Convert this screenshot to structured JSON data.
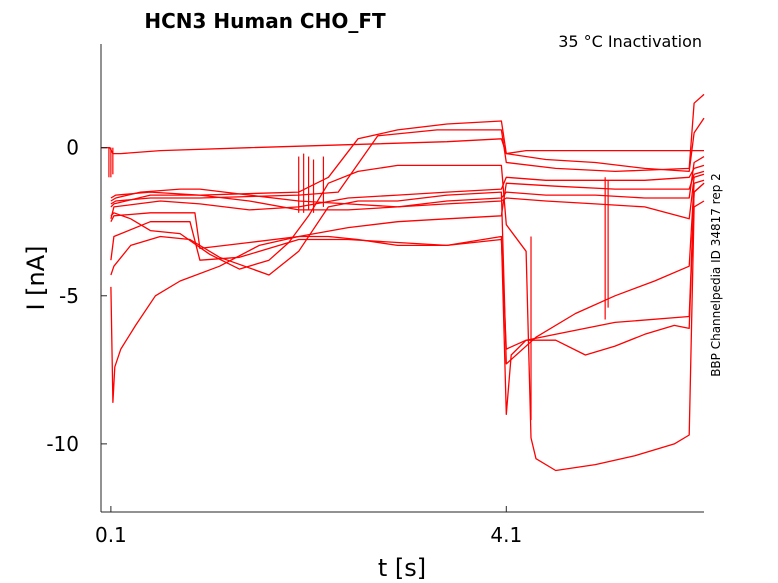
{
  "chart_data": {
    "type": "line",
    "title": "HCN3  Human  CHO_FT",
    "subtitle": "35 °C  Inactivation",
    "side_label": "BBP Channelpedia ID 34817 rep 2",
    "xlabel": "t [s]",
    "ylabel": "I [nA]",
    "xlim": [
      0.0,
      6.1
    ],
    "ylim": [
      -12.3,
      3.5
    ],
    "xticks": [
      {
        "value": 0.1,
        "label": "0.1"
      },
      {
        "value": 4.1,
        "label": "4.1"
      }
    ],
    "yticks": [
      {
        "value": 0,
        "label": "0"
      },
      {
        "value": -5,
        "label": "-5"
      },
      {
        "value": -10,
        "label": "-10"
      }
    ],
    "color": "#ff0000",
    "series": [
      {
        "x": [
          0.0,
          0.09,
          0.12,
          0.2,
          0.6,
          1.5,
          2.5,
          3.5,
          4.05,
          4.1,
          4.3,
          5.0,
          5.8,
          5.95,
          6.1
        ],
        "y": [
          0.0,
          0.0,
          -0.2,
          -0.2,
          -0.1,
          0.0,
          0.1,
          0.2,
          0.3,
          -0.2,
          -0.1,
          -0.1,
          -0.1,
          -0.1,
          -0.1
        ]
      },
      {
        "x": [
          0.1,
          0.13,
          0.5,
          1.0,
          2.0,
          2.3,
          2.6,
          3.0,
          3.5,
          4.05,
          4.1,
          4.5,
          5.0,
          5.5,
          5.95,
          6.0,
          6.1
        ],
        "y": [
          -2.0,
          -1.9,
          -1.6,
          -1.6,
          -1.5,
          -1.0,
          0.3,
          0.6,
          0.8,
          0.9,
          -0.2,
          -0.4,
          -0.5,
          -0.7,
          -0.8,
          0.5,
          1.0
        ]
      },
      {
        "x": [
          0.1,
          0.15,
          0.5,
          1.0,
          2.0,
          2.4,
          2.8,
          3.4,
          4.05,
          4.1,
          4.6,
          5.2,
          5.95,
          6.0,
          6.1
        ],
        "y": [
          -1.9,
          -1.8,
          -1.7,
          -1.7,
          -1.6,
          -1.5,
          0.4,
          0.6,
          0.6,
          -0.5,
          -0.7,
          -0.8,
          -0.7,
          1.5,
          1.8
        ]
      },
      {
        "x": [
          0.1,
          0.13,
          0.6,
          1.0,
          1.5,
          2.0,
          2.5,
          3.0,
          3.5,
          4.05,
          4.1,
          4.5,
          5.0,
          5.5,
          5.95,
          6.0,
          6.1
        ],
        "y": [
          -2.4,
          -2.0,
          -1.8,
          -1.9,
          -2.1,
          -2.0,
          -1.7,
          -1.6,
          -1.5,
          -1.4,
          -1.0,
          -1.1,
          -1.1,
          -1.1,
          -1.0,
          -0.7,
          -0.6
        ]
      },
      {
        "x": [
          0.1,
          0.13,
          0.5,
          0.95,
          1.0,
          1.5,
          2.0,
          2.5,
          3.0,
          3.5,
          4.05,
          4.1,
          4.6,
          5.2,
          5.95,
          6.0,
          6.1
        ],
        "y": [
          -2.5,
          -2.3,
          -2.2,
          -2.2,
          -3.4,
          -3.2,
          -3.0,
          -2.7,
          -2.5,
          -2.4,
          -2.3,
          -1.2,
          -1.3,
          -1.4,
          -1.4,
          -0.9,
          -0.8
        ]
      },
      {
        "x": [
          0.1,
          0.13,
          0.5,
          0.9,
          1.0,
          1.4,
          2.0,
          2.5,
          3.0,
          3.5,
          4.05,
          4.1,
          4.3,
          4.6,
          5.2,
          5.95,
          6.0,
          6.1
        ],
        "y": [
          -3.8,
          -3.0,
          -2.5,
          -2.5,
          -3.8,
          -3.7,
          -3.1,
          -3.1,
          -3.2,
          -3.3,
          -3.1,
          -6.8,
          -6.5,
          -6.3,
          -5.9,
          -5.7,
          -1.5,
          -1.2
        ]
      },
      {
        "x": [
          0.1,
          0.13,
          0.3,
          0.6,
          0.9,
          1.2,
          1.7,
          2.0,
          2.3,
          2.6,
          3.0,
          3.5,
          4.05,
          4.1,
          4.4,
          4.8,
          5.2,
          5.6,
          5.95,
          6.0,
          6.1
        ],
        "y": [
          -4.3,
          -4.0,
          -3.3,
          -3.0,
          -3.1,
          -3.7,
          -4.3,
          -3.5,
          -2.0,
          -1.8,
          -1.8,
          -1.6,
          -1.5,
          -7.3,
          -6.4,
          -5.6,
          -5.0,
          -4.5,
          -4.0,
          -1.2,
          -1.1
        ]
      },
      {
        "x": [
          0.1,
          0.12,
          0.14,
          0.2,
          0.35,
          0.55,
          0.8,
          1.2,
          1.6,
          2.0,
          2.3,
          2.6,
          3.0,
          3.5,
          4.05,
          4.1,
          4.15,
          4.3,
          4.6,
          4.9,
          5.2,
          5.5,
          5.8,
          5.95,
          6.0,
          6.1
        ],
        "y": [
          -4.7,
          -8.6,
          -7.4,
          -6.8,
          -6.0,
          -5.0,
          -4.5,
          -4.0,
          -3.3,
          -3.0,
          -3.0,
          -3.1,
          -3.3,
          -3.3,
          -3.0,
          -9.0,
          -7.0,
          -6.5,
          -6.5,
          -7.0,
          -6.7,
          -6.3,
          -6.0,
          -6.1,
          -1.5,
          -1.2
        ]
      },
      {
        "x": [
          0.1,
          0.13,
          0.3,
          0.5,
          0.8,
          1.1,
          1.4,
          1.7,
          1.9,
          2.1,
          2.3,
          2.6,
          3.0,
          3.5,
          4.05,
          4.1,
          4.3,
          4.35,
          4.4,
          4.6,
          5.0,
          5.4,
          5.8,
          5.95,
          6.0,
          6.1
        ],
        "y": [
          -2.3,
          -2.2,
          -2.4,
          -2.8,
          -2.9,
          -3.6,
          -4.1,
          -3.8,
          -3.2,
          -2.3,
          -1.2,
          -0.8,
          -0.6,
          -0.6,
          -0.6,
          -2.6,
          -3.5,
          -9.8,
          -10.5,
          -10.9,
          -10.7,
          -10.4,
          -10.0,
          -9.7,
          -2.0,
          -1.8
        ]
      },
      {
        "x": [
          0.1,
          0.15,
          0.4,
          0.8,
          1.0,
          1.5,
          2.0,
          2.5,
          3.0,
          3.5,
          4.05,
          4.1,
          4.5,
          5.0,
          5.5,
          5.95,
          6.0,
          6.1
        ],
        "y": [
          -1.8,
          -1.7,
          -1.5,
          -1.4,
          -1.4,
          -1.6,
          -1.8,
          -1.9,
          -2.0,
          -1.8,
          -1.7,
          -1.5,
          -1.6,
          -1.6,
          -1.7,
          -1.7,
          -0.5,
          -0.3
        ]
      },
      {
        "x": [
          0.1,
          0.15,
          0.5,
          1.0,
          1.5,
          2.0,
          2.5,
          3.0,
          3.5,
          4.05,
          4.1,
          4.5,
          5.0,
          5.5,
          5.95,
          6.0,
          6.1
        ],
        "y": [
          -1.7,
          -1.6,
          -1.5,
          -1.6,
          -1.8,
          -2.1,
          -2.1,
          -2.0,
          -1.9,
          -1.8,
          -1.7,
          -1.8,
          -1.9,
          -2.0,
          -2.4,
          -1.0,
          -0.9
        ]
      }
    ],
    "spikes": [
      {
        "x": 0.08,
        "y0": 0.0,
        "y1": -1.0
      },
      {
        "x": 0.1,
        "y0": 0.0,
        "y1": -1.0
      },
      {
        "x": 0.12,
        "y0": 0.0,
        "y1": -0.9
      },
      {
        "x": 2.0,
        "y0": -2.2,
        "y1": -0.3
      },
      {
        "x": 2.05,
        "y0": -2.2,
        "y1": -0.2
      },
      {
        "x": 2.1,
        "y0": -2.1,
        "y1": -0.3
      },
      {
        "x": 2.15,
        "y0": -2.2,
        "y1": -0.4
      },
      {
        "x": 2.25,
        "y0": -2.0,
        "y1": -0.3
      },
      {
        "x": 5.1,
        "y0": -5.8,
        "y1": -1.0
      },
      {
        "x": 5.13,
        "y0": -5.4,
        "y1": -1.1
      },
      {
        "x": 4.35,
        "y0": -9.2,
        "y1": -3.0
      }
    ]
  }
}
